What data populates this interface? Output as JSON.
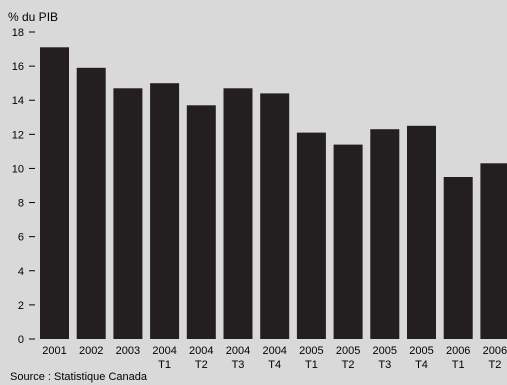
{
  "chart_data": {
    "type": "bar",
    "title": "",
    "ylabel": "% du PIB",
    "xlabel": "",
    "ylim": [
      0,
      18
    ],
    "yticks": [
      0,
      2,
      4,
      6,
      8,
      10,
      12,
      14,
      16,
      18
    ],
    "grid": false,
    "categories": [
      [
        "2001"
      ],
      [
        "2002"
      ],
      [
        "2003"
      ],
      [
        "2004",
        "T1"
      ],
      [
        "2004",
        "T2"
      ],
      [
        "2004",
        "T3"
      ],
      [
        "2004",
        "T4"
      ],
      [
        "2005",
        "T1"
      ],
      [
        "2005",
        "T2"
      ],
      [
        "2005",
        "T3"
      ],
      [
        "2005",
        "T4"
      ],
      [
        "2006",
        "T1"
      ],
      [
        "2006",
        "T2"
      ]
    ],
    "values": [
      17.1,
      15.9,
      14.7,
      15.0,
      13.7,
      14.7,
      14.4,
      12.1,
      11.4,
      12.3,
      12.5,
      9.5,
      10.3
    ],
    "colors": {
      "bar": "#231f20",
      "background": "#d9d9d9",
      "axis": "#000000"
    }
  },
  "source": "Source : Statistique Canada"
}
